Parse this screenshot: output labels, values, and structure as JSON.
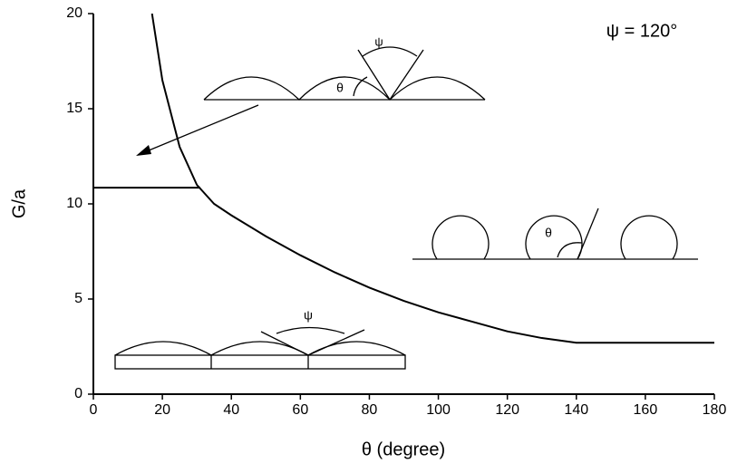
{
  "chart_data": {
    "type": "line",
    "xlabel": "θ (degree)",
    "ylabel": "G/a",
    "xlim": [
      0,
      180
    ],
    "xticks": [
      0,
      20,
      40,
      60,
      80,
      100,
      120,
      140,
      160,
      180
    ],
    "ylim": [
      0,
      20
    ],
    "yticks": [
      0,
      5,
      10,
      15,
      20
    ],
    "series": [
      {
        "color": "#000000",
        "x": [
          17,
          20,
          25,
          30,
          35,
          40,
          50,
          60,
          70,
          80,
          90,
          100,
          110,
          120,
          130,
          140,
          150,
          160,
          170,
          180
        ],
        "values": [
          20,
          16.5,
          13,
          11,
          10,
          9.4,
          8.3,
          7.3,
          6.4,
          5.6,
          4.9,
          4.3,
          3.8,
          3.3,
          2.95,
          2.7,
          2.7,
          2.7,
          2.7,
          2.7
        ]
      },
      {
        "color": "#000000",
        "x": [
          0,
          31
        ],
        "values": [
          10.85,
          10.85
        ]
      }
    ],
    "annotations": [
      "ψ = 120°",
      "ψ",
      "θ",
      "θ",
      "ψ"
    ]
  }
}
